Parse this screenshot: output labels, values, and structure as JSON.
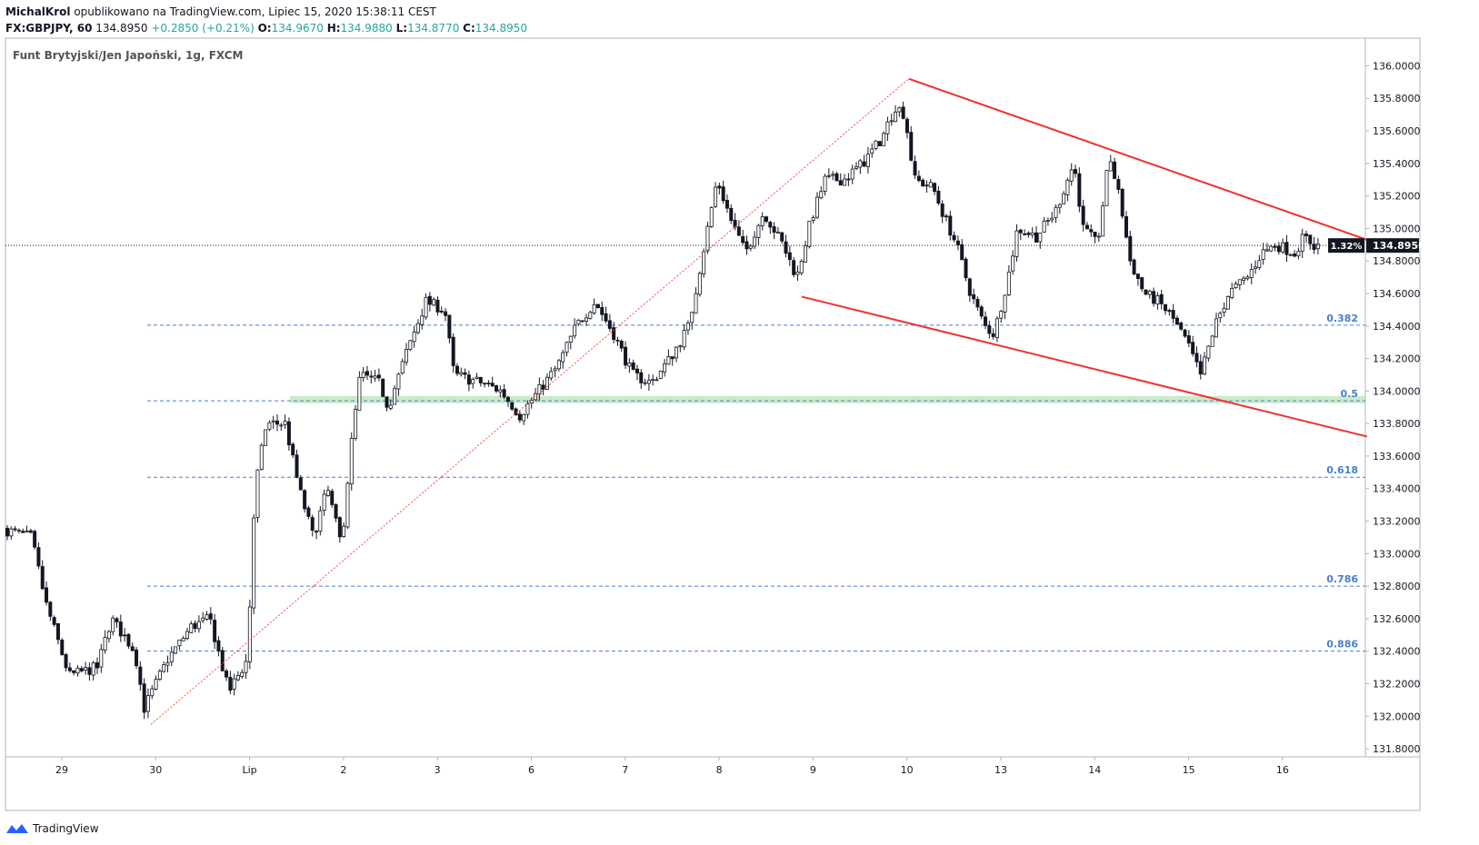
{
  "header": {
    "author": "MichalKrol",
    "published": "opublikowano na TradingView.com, Lipiec 15, 2020 15:38:11 CEST",
    "symbol": "FX:GBPJPY, 60",
    "last": "134.8950",
    "change": "+0.2850 (+0.21%)",
    "o_label": "O:",
    "o": "134.9670",
    "h_label": "H:",
    "h": "134.9880",
    "l_label": "L:",
    "l": "134.8770",
    "c_label": "C:",
    "c": "134.8950"
  },
  "pair_title": "Funt Brytyjski/Jen Japoński, 1g, FXCM",
  "footer": {
    "brand": "TradingView"
  },
  "colors": {
    "channel": "#f03030",
    "fib": "#4a7fcf",
    "zone": "#b8e3b8",
    "fib_guide": "#f05050",
    "candle": "#131722"
  },
  "chart_data": {
    "type": "candlestick",
    "y_ticks": [
      "136.0000",
      "135.8000",
      "135.6000",
      "135.4000",
      "135.2000",
      "135.0000",
      "134.8000",
      "134.6000",
      "134.4000",
      "134.2000",
      "134.0000",
      "133.8000",
      "133.6000",
      "133.4000",
      "133.2000",
      "133.0000",
      "132.8000",
      "132.6000",
      "132.4000",
      "132.2000",
      "132.0000",
      "131.8000"
    ],
    "ylim": [
      131.75,
      136.17
    ],
    "x_labels": [
      {
        "label": "29",
        "session": 0.6
      },
      {
        "label": "30",
        "session": 1.6
      },
      {
        "label": "Lip",
        "session": 2.6
      },
      {
        "label": "2",
        "session": 3.6
      },
      {
        "label": "3",
        "session": 4.6
      },
      {
        "label": "6",
        "session": 5.6
      },
      {
        "label": "7",
        "session": 6.6
      },
      {
        "label": "8",
        "session": 7.6
      },
      {
        "label": "9",
        "session": 8.6
      },
      {
        "label": "10",
        "session": 9.6
      },
      {
        "label": "13",
        "session": 10.6
      },
      {
        "label": "14",
        "session": 11.6
      },
      {
        "label": "15",
        "session": 12.6
      },
      {
        "label": "16",
        "session": 13.6
      }
    ],
    "current_price": {
      "value": 134.895,
      "label": "134.8950",
      "pct": "1.32%"
    },
    "fib_levels": [
      {
        "label": "0.382",
        "value": 134.405
      },
      {
        "label": "0.5",
        "value": 133.94
      },
      {
        "label": "0.618",
        "value": 133.47
      },
      {
        "label": "0.786",
        "value": 132.8
      },
      {
        "label": "0.886",
        "value": 132.4
      }
    ],
    "support_zone": [
      133.925,
      133.97
    ],
    "price_path": [
      [
        0.0,
        133.15
      ],
      [
        0.3,
        133.1
      ],
      [
        0.45,
        132.7
      ],
      [
        0.7,
        132.25
      ],
      [
        1.0,
        132.3
      ],
      [
        1.15,
        132.6
      ],
      [
        1.4,
        132.4
      ],
      [
        1.5,
        132.05
      ],
      [
        1.75,
        132.35
      ],
      [
        2.0,
        132.55
      ],
      [
        2.2,
        132.6
      ],
      [
        2.4,
        132.15
      ],
      [
        2.6,
        132.35
      ],
      [
        2.68,
        133.4
      ],
      [
        2.8,
        133.8
      ],
      [
        3.0,
        133.8
      ],
      [
        3.15,
        133.4
      ],
      [
        3.3,
        133.1
      ],
      [
        3.45,
        133.4
      ],
      [
        3.6,
        133.05
      ],
      [
        3.7,
        133.65
      ],
      [
        3.8,
        134.1
      ],
      [
        4.0,
        134.05
      ],
      [
        4.1,
        133.9
      ],
      [
        4.3,
        134.25
      ],
      [
        4.5,
        134.55
      ],
      [
        4.7,
        134.5
      ],
      [
        4.8,
        134.1
      ],
      [
        5.1,
        134.05
      ],
      [
        5.3,
        134.0
      ],
      [
        5.5,
        133.85
      ],
      [
        5.7,
        134.0
      ],
      [
        5.9,
        134.15
      ],
      [
        6.1,
        134.4
      ],
      [
        6.3,
        134.55
      ],
      [
        6.5,
        134.35
      ],
      [
        6.7,
        134.1
      ],
      [
        6.9,
        134.05
      ],
      [
        7.1,
        134.2
      ],
      [
        7.3,
        134.4
      ],
      [
        7.45,
        134.85
      ],
      [
        7.6,
        135.3
      ],
      [
        7.75,
        135.05
      ],
      [
        7.9,
        134.85
      ],
      [
        8.1,
        135.1
      ],
      [
        8.3,
        134.9
      ],
      [
        8.45,
        134.7
      ],
      [
        8.6,
        135.05
      ],
      [
        8.75,
        135.3
      ],
      [
        8.95,
        135.3
      ],
      [
        9.15,
        135.4
      ],
      [
        9.35,
        135.55
      ],
      [
        9.5,
        135.75
      ],
      [
        9.6,
        135.7
      ],
      [
        9.7,
        135.3
      ],
      [
        9.9,
        135.25
      ],
      [
        10.0,
        135.1
      ],
      [
        10.15,
        134.9
      ],
      [
        10.3,
        134.6
      ],
      [
        10.45,
        134.4
      ],
      [
        10.55,
        134.35
      ],
      [
        10.7,
        134.7
      ],
      [
        10.8,
        135.0
      ],
      [
        11.0,
        134.95
      ],
      [
        11.2,
        135.1
      ],
      [
        11.4,
        135.4
      ],
      [
        11.5,
        135.0
      ],
      [
        11.65,
        134.9
      ],
      [
        11.78,
        135.45
      ],
      [
        11.9,
        135.15
      ],
      [
        12.0,
        134.8
      ],
      [
        12.15,
        134.6
      ],
      [
        12.3,
        134.55
      ],
      [
        12.45,
        134.45
      ],
      [
        12.6,
        134.3
      ],
      [
        12.75,
        134.1
      ],
      [
        12.9,
        134.4
      ],
      [
        13.05,
        134.6
      ],
      [
        13.25,
        134.7
      ],
      [
        13.4,
        134.85
      ],
      [
        13.55,
        134.9
      ],
      [
        13.75,
        134.85
      ],
      [
        13.85,
        134.95
      ],
      [
        13.96,
        134.895
      ]
    ],
    "channel_upper": [
      [
        9.62,
        135.92
      ],
      [
        14.5,
        134.93
      ],
      [
        14.5,
        134.93
      ]
    ],
    "channel_lower": [
      [
        8.48,
        134.58
      ],
      [
        14.5,
        133.72
      ]
    ],
    "fib_guide": [
      [
        1.55,
        131.95
      ],
      [
        9.62,
        135.92
      ]
    ]
  }
}
